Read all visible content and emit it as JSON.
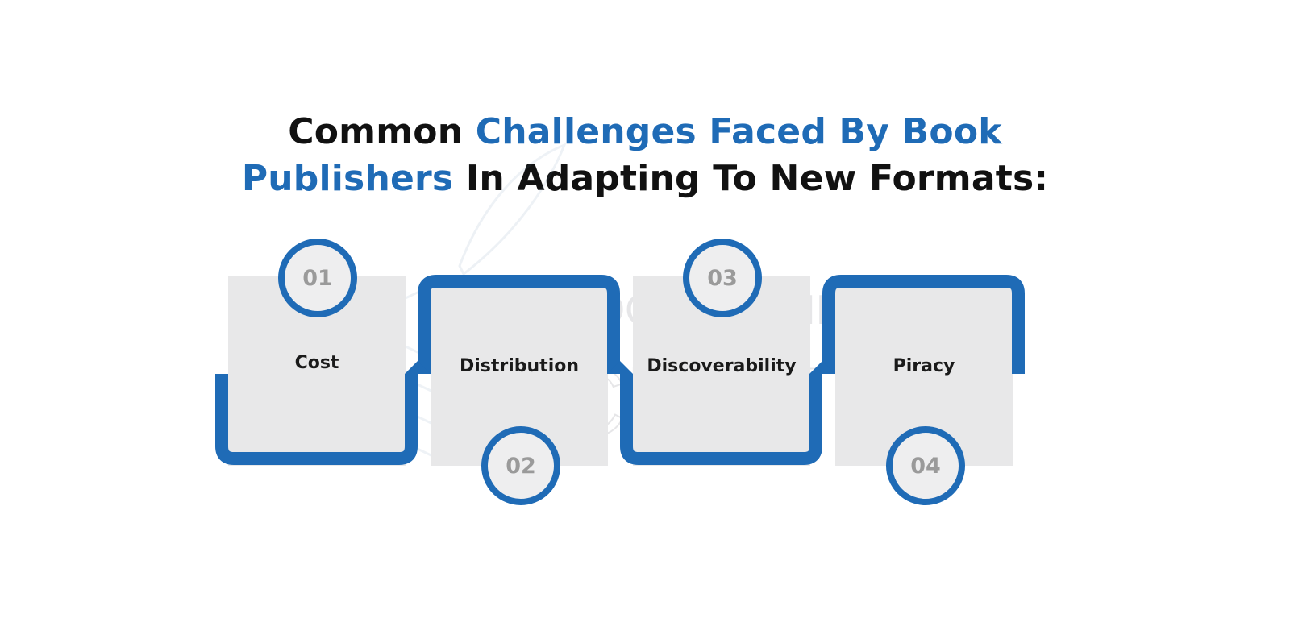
{
  "title": {
    "line1_plain": "Common ",
    "line1_accent": "Challenges Faced By Book",
    "line2_accent": "Publishers",
    "line2_plain": " In Adapting To New Formats:"
  },
  "watermark": {
    "top_text": "BOOK WRITING",
    "bottom_text": "CUBE"
  },
  "steps": [
    {
      "number": "01",
      "label": "Cost"
    },
    {
      "number": "02",
      "label": "Distribution"
    },
    {
      "number": "03",
      "label": "Discoverability"
    },
    {
      "number": "04",
      "label": "Piracy"
    }
  ],
  "colors": {
    "accent": "#1f6bb6",
    "card": "#e8e8e9",
    "badge_number": "#9a9a9a",
    "title": "#111111"
  }
}
